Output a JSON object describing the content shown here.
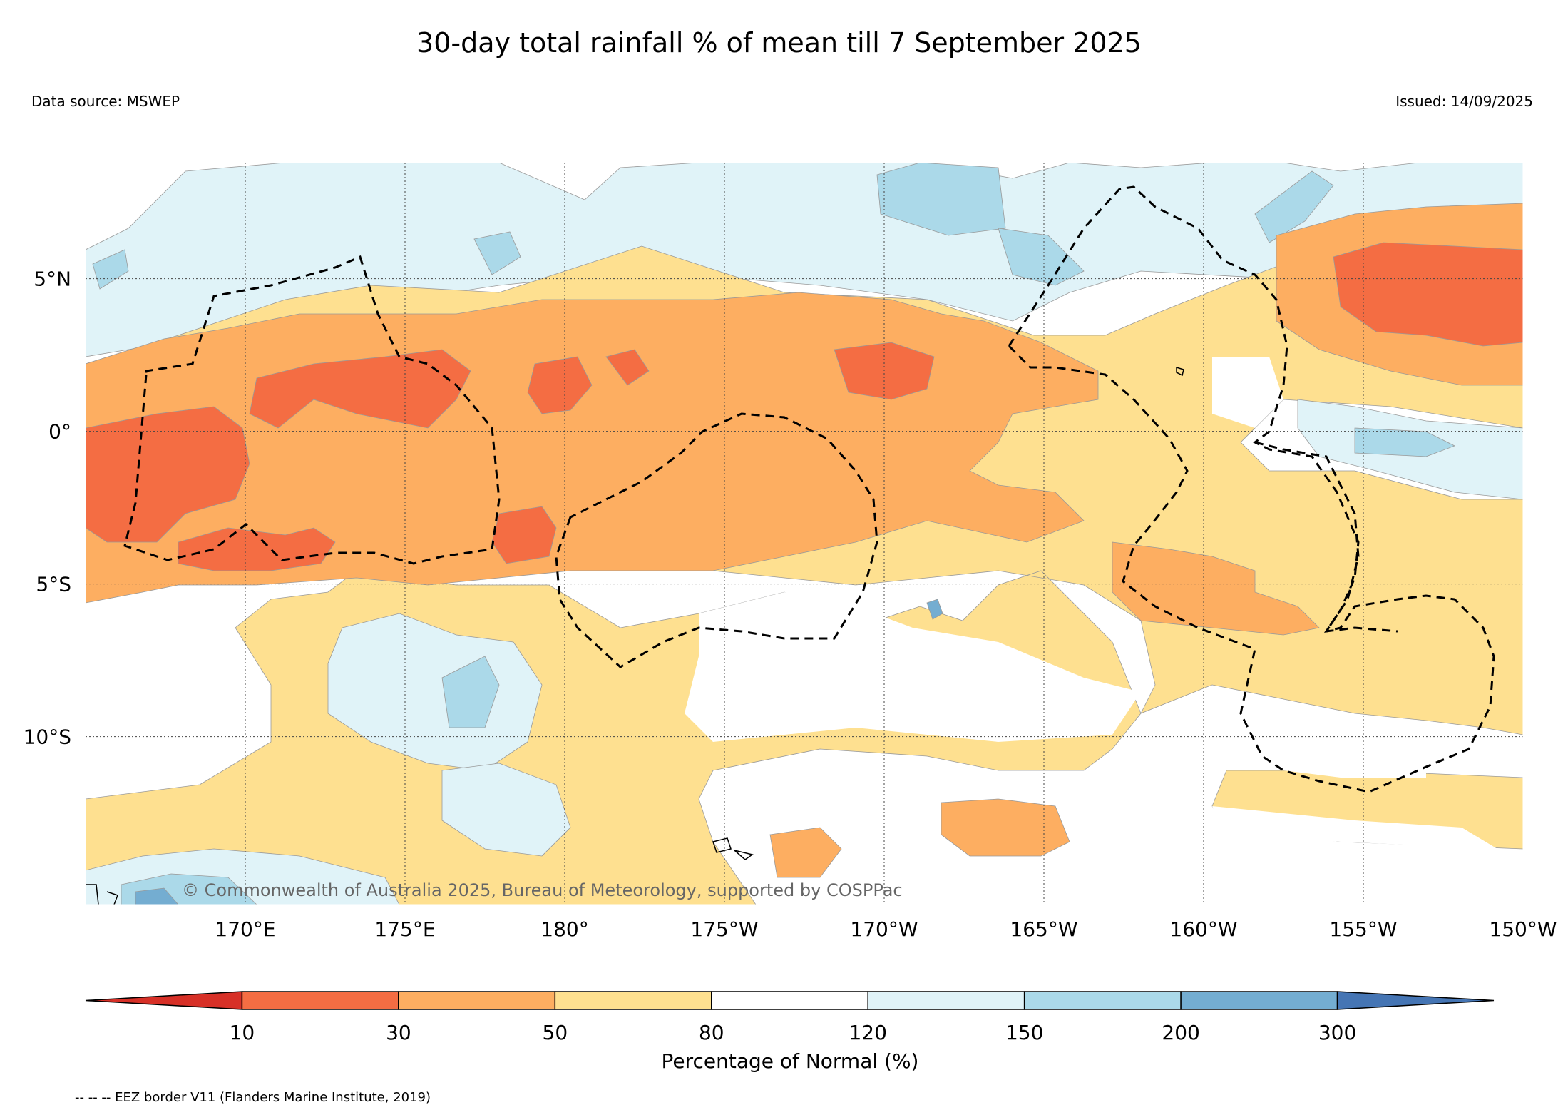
{
  "title": "30-day total rainfall % of mean till 7 September 2025",
  "data_source": "Data source: MSWEP",
  "issued": "Issued: 14/09/2025",
  "copyright": "© Commonwealth of Australia 2025, Bureau of Meteorology, supported by COSPPac",
  "eez_note": "-- -- -- EEZ border V11 (Flanders Marine Institute, 2019)",
  "map": {
    "lon_range": [
      165,
      210
    ],
    "lat_range": [
      -15.5,
      8.8
    ],
    "lat_ticks": [
      {
        "label": "5°N",
        "value": 5
      },
      {
        "label": "0°",
        "value": 0
      },
      {
        "label": "5°S",
        "value": -5
      },
      {
        "label": "10°S",
        "value": -10
      }
    ],
    "lon_ticks": [
      {
        "label": "170°E",
        "value": 170
      },
      {
        "label": "175°E",
        "value": 175
      },
      {
        "label": "180°",
        "value": 180
      },
      {
        "label": "175°W",
        "value": 185
      },
      {
        "label": "170°W",
        "value": 190
      },
      {
        "label": "165°W",
        "value": 195
      },
      {
        "label": "160°W",
        "value": 200
      },
      {
        "label": "155°W",
        "value": 205
      },
      {
        "label": "150°W",
        "value": 210
      }
    ]
  },
  "colorbar": {
    "label": "Percentage of Normal (%)",
    "ticks": [
      "10",
      "30",
      "50",
      "80",
      "120",
      "150",
      "200",
      "300"
    ],
    "colors": {
      "under": "#d73027",
      "c10_30": "#f46d43",
      "c30_50": "#fdae61",
      "c50_80": "#fee090",
      "c80_120": "#ffffff",
      "c120_150": "#e0f3f8",
      "c150_200": "#abd9e9",
      "c200_300": "#74add1",
      "over": "#4575b4"
    }
  }
}
